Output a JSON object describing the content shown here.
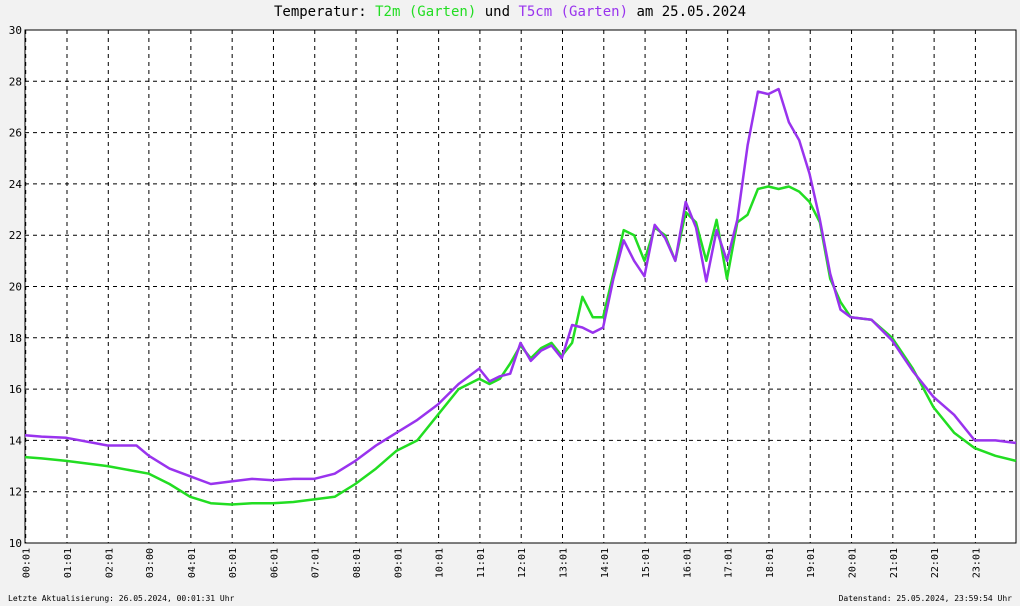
{
  "title": {
    "prefix": "Temperatur: ",
    "series1": "T2m (Garten)",
    "mid": " und ",
    "series2": "T5cm (Garten)",
    "suffix": " am 25.05.2024"
  },
  "footer": {
    "left": "Letzte Aktualisierung: 26.05.2024, 00:01:31 Uhr",
    "right": "Datenstand: 25.05.2024, 23:59:54 Uhr"
  },
  "chart_data": {
    "type": "line",
    "title": "Temperatur: T2m (Garten) und T5cm (Garten) am 25.05.2024",
    "xlabel": "",
    "ylabel": "",
    "xlim": [
      0,
      24
    ],
    "ylim": [
      10,
      30
    ],
    "grid": true,
    "y_ticks": [
      "10",
      "12",
      "14",
      "16",
      "18",
      "20",
      "22",
      "24",
      "26",
      "28",
      "30"
    ],
    "x_ticks": [
      {
        "h": 0.017,
        "label": "00:01"
      },
      {
        "h": 1.017,
        "label": "01:01"
      },
      {
        "h": 2.017,
        "label": "02:01"
      },
      {
        "h": 3.0,
        "label": "03:00"
      },
      {
        "h": 4.017,
        "label": "04:01"
      },
      {
        "h": 5.017,
        "label": "05:01"
      },
      {
        "h": 6.017,
        "label": "06:01"
      },
      {
        "h": 7.017,
        "label": "07:01"
      },
      {
        "h": 8.017,
        "label": "08:01"
      },
      {
        "h": 9.017,
        "label": "09:01"
      },
      {
        "h": 10.017,
        "label": "10:01"
      },
      {
        "h": 11.017,
        "label": "11:01"
      },
      {
        "h": 12.017,
        "label": "12:01"
      },
      {
        "h": 13.017,
        "label": "13:01"
      },
      {
        "h": 14.017,
        "label": "14:01"
      },
      {
        "h": 15.017,
        "label": "15:01"
      },
      {
        "h": 16.017,
        "label": "16:01"
      },
      {
        "h": 17.017,
        "label": "17:01"
      },
      {
        "h": 18.017,
        "label": "18:01"
      },
      {
        "h": 19.017,
        "label": "19:01"
      },
      {
        "h": 20.017,
        "label": "20:01"
      },
      {
        "h": 21.017,
        "label": "21:01"
      },
      {
        "h": 22.017,
        "label": "22:01"
      },
      {
        "h": 23.017,
        "label": "23:01"
      }
    ],
    "series": [
      {
        "name": "T2m (Garten)",
        "color": "#22dd22",
        "x": [
          0,
          0.4,
          1,
          2,
          3,
          3.5,
          4,
          4.5,
          5,
          5.5,
          6,
          6.5,
          7,
          7.5,
          8,
          8.5,
          9,
          9.5,
          10,
          10.5,
          11,
          11.25,
          11.5,
          11.75,
          12,
          12.25,
          12.5,
          12.75,
          13,
          13.25,
          13.5,
          13.75,
          14,
          14.25,
          14.5,
          14.75,
          15,
          15.25,
          15.5,
          15.75,
          16,
          16.25,
          16.5,
          16.75,
          17,
          17.25,
          17.5,
          17.75,
          18,
          18.25,
          18.5,
          18.75,
          19,
          19.25,
          19.5,
          19.75,
          20,
          20.5,
          21,
          21.5,
          22,
          22.5,
          23,
          23.5,
          24
        ],
        "values": [
          13.35,
          13.3,
          13.2,
          13.0,
          12.7,
          12.3,
          11.8,
          11.55,
          11.5,
          11.55,
          11.55,
          11.6,
          11.7,
          11.8,
          12.3,
          12.9,
          13.6,
          14.0,
          15.0,
          16.0,
          16.4,
          16.2,
          16.4,
          17.0,
          17.7,
          17.2,
          17.6,
          17.8,
          17.3,
          17.8,
          19.6,
          18.8,
          18.8,
          20.5,
          22.2,
          22.0,
          21.0,
          22.3,
          22.0,
          21.0,
          22.9,
          22.5,
          21.0,
          22.6,
          20.3,
          22.5,
          22.8,
          23.8,
          23.9,
          23.8,
          23.9,
          23.7,
          23.3,
          22.5,
          20.3,
          19.4,
          18.8,
          18.7,
          18.0,
          16.8,
          15.3,
          14.3,
          13.7,
          13.4,
          13.2
        ]
      },
      {
        "name": "T5cm (Garten)",
        "color": "#9933ee",
        "x": [
          0,
          0.4,
          1,
          2,
          2.7,
          3,
          3.5,
          4,
          4.5,
          5,
          5.5,
          6,
          6.5,
          7,
          7.5,
          8,
          8.5,
          9,
          9.5,
          10,
          10.5,
          11,
          11.25,
          11.5,
          11.75,
          12,
          12.25,
          12.5,
          12.75,
          13,
          13.25,
          13.5,
          13.75,
          14,
          14.25,
          14.5,
          14.75,
          15,
          15.25,
          15.5,
          15.75,
          16,
          16.25,
          16.5,
          16.75,
          17,
          17.25,
          17.5,
          17.75,
          18,
          18.25,
          18.5,
          18.75,
          19,
          19.25,
          19.5,
          19.75,
          20,
          20.5,
          21,
          21.5,
          22,
          22.5,
          23,
          23.5,
          24
        ],
        "values": [
          14.2,
          14.15,
          14.1,
          13.8,
          13.8,
          13.4,
          12.9,
          12.6,
          12.3,
          12.4,
          12.5,
          12.45,
          12.5,
          12.5,
          12.7,
          13.2,
          13.8,
          14.3,
          14.8,
          15.4,
          16.2,
          16.8,
          16.3,
          16.5,
          16.6,
          17.8,
          17.1,
          17.5,
          17.7,
          17.2,
          18.5,
          18.4,
          18.2,
          18.4,
          20.3,
          21.8,
          21.0,
          20.4,
          22.4,
          21.9,
          21.0,
          23.3,
          22.3,
          20.2,
          22.2,
          21.0,
          22.6,
          25.5,
          27.6,
          27.5,
          27.7,
          26.4,
          25.7,
          24.4,
          22.6,
          20.5,
          19.1,
          18.8,
          18.7,
          17.9,
          16.7,
          15.7,
          15.0,
          14.0,
          14.0,
          13.9
        ]
      }
    ]
  }
}
